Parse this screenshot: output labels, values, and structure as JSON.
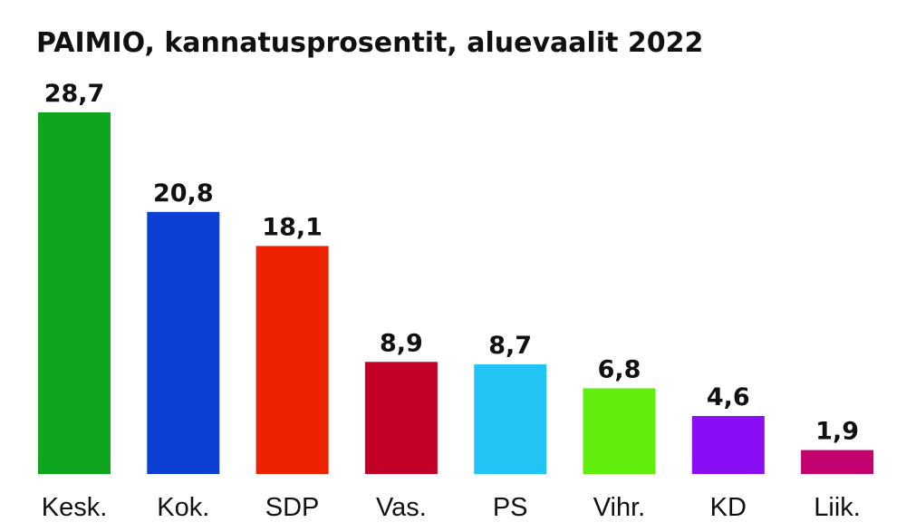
{
  "chart_data": {
    "type": "bar",
    "title": "PAIMIO, kannatusprosentit, aluevaalit 2022",
    "categories": [
      "Kesk.",
      "Kok.",
      "SDP",
      "Vas.",
      "PS",
      "Vihr.",
      "KD",
      "Liik."
    ],
    "values": [
      28.7,
      20.8,
      18.1,
      8.9,
      8.7,
      6.8,
      4.6,
      1.9
    ],
    "value_labels": [
      "28,7",
      "20,8",
      "18,1",
      "8,9",
      "8,7",
      "6,8",
      "4,6",
      "1,9"
    ],
    "colors": [
      "#10a51e",
      "#0c3fd4",
      "#ee2200",
      "#c20026",
      "#22c4f6",
      "#62ee0c",
      "#8a0ef4",
      "#c2006e"
    ],
    "xlabel": "",
    "ylabel": "",
    "ylim": [
      0,
      28.7
    ],
    "grid": false,
    "legend": "none"
  }
}
